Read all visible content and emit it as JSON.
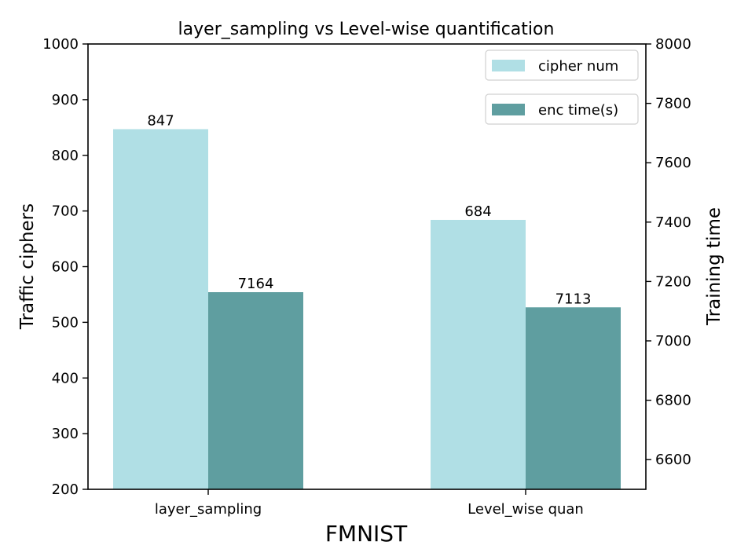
{
  "chart_data": {
    "type": "bar",
    "title": "layer_sampling vs Level-wise quantification",
    "xlabel": "FMNIST",
    "ylabel_left": "Traffic ciphers",
    "ylabel_right": "Training time",
    "categories": [
      "layer_sampling",
      "Level_wise quan"
    ],
    "series": [
      {
        "name": "cipher num",
        "axis": "left",
        "color": "#b0dfe5",
        "values": [
          847,
          684
        ],
        "labels": [
          "847",
          "684"
        ]
      },
      {
        "name": "enc time(s)",
        "axis": "right",
        "color": "#5f9ea0",
        "values": [
          7164,
          7113
        ],
        "labels": [
          "7164",
          "7113"
        ]
      }
    ],
    "ylim_left": [
      200,
      1000
    ],
    "yticks_left": [
      "200",
      "300",
      "400",
      "500",
      "600",
      "700",
      "800",
      "900",
      "1000"
    ],
    "ylim_right": [
      6500,
      8000
    ],
    "yticks_right": [
      "6600",
      "6800",
      "7000",
      "7200",
      "7400",
      "7600",
      "7800",
      "8000"
    ],
    "grid": false,
    "legend_position": "top-right"
  }
}
